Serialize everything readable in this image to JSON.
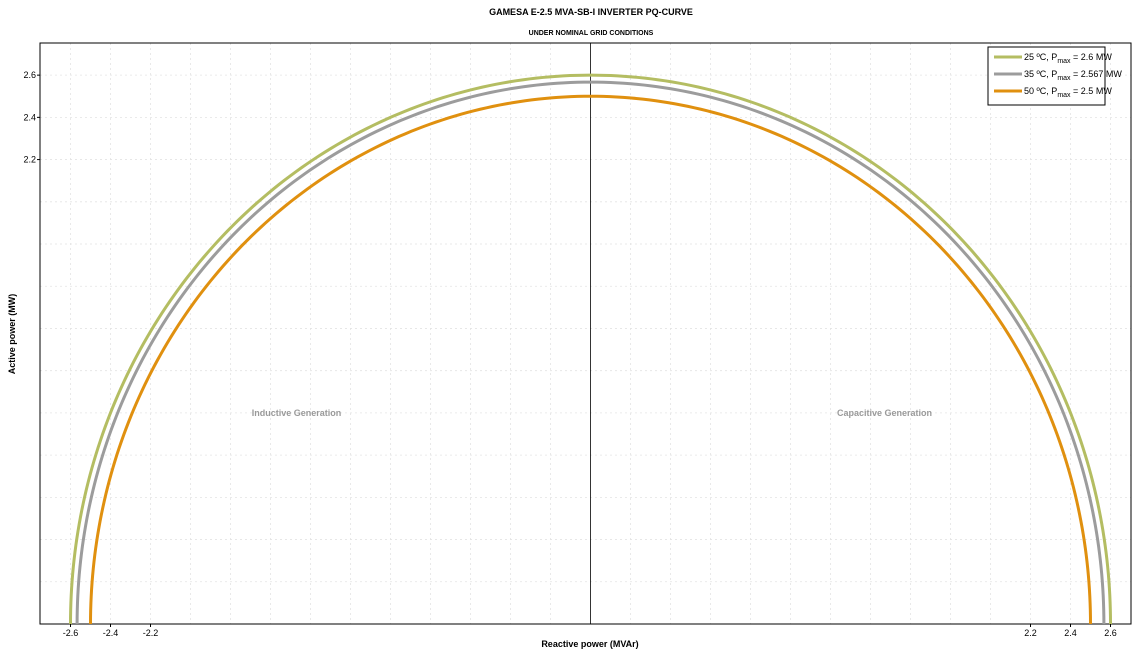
{
  "chart_data": {
    "type": "line",
    "title": "GAMESA  E-2.5 MVA-SB-I  INVERTER  PQ-CURVE",
    "subtitle": "UNDER NOMINAL GRID CONDITIONS",
    "xlabel": "Reactive power (MVAr)",
    "ylabel": "Active power (MW)",
    "xlim": [
      -2.7,
      2.7
    ],
    "ylim": [
      0.0,
      2.75
    ],
    "x_ticks": [
      -2.6,
      -2.4,
      -2.2,
      2.2,
      2.4,
      2.6
    ],
    "x_tick_labels": [
      "-2.6",
      "-2.4",
      "-2.2",
      "2.2",
      "2.4",
      "2.6"
    ],
    "y_ticks": [
      2.2,
      2.4,
      2.6
    ],
    "y_tick_labels": [
      "2.2",
      "2.4",
      "2.6"
    ],
    "grid": true,
    "legend_position": "top-right",
    "annotations": [
      {
        "text": "Inductive Generation",
        "x": -1.47,
        "y": 1.0
      },
      {
        "text": "Capacitive Generation",
        "x": 1.47,
        "y": 1.0
      }
    ],
    "series": [
      {
        "name": "25 ºC, P max = 2.6 MW",
        "legend_prefix": "25 ºC, P",
        "legend_sub": "max",
        "legend_suffix": " = 2.6 MW",
        "radius": 2.6,
        "color": "#b4bd62"
      },
      {
        "name": "35 ºC, P max = 2.567 MW",
        "legend_prefix": "35 ºC, P",
        "legend_sub": "max",
        "legend_suffix": " = 2.567 MW",
        "radius": 2.567,
        "color": "#9c9c9c"
      },
      {
        "name": "50 ºC, P max = 2.5 MW",
        "legend_prefix": "50 ºC, P",
        "legend_sub": "max",
        "legend_suffix": " = 2.5 MW",
        "radius": 2.5,
        "color": "#e0900f"
      }
    ]
  }
}
